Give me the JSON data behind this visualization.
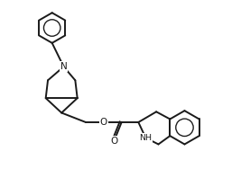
{
  "background_color": "#ffffff",
  "line_color": "#1a1a1a",
  "line_width": 1.4,
  "figsize": [
    2.67,
    1.88
  ],
  "dpi": 100,
  "xlim": [
    0.0,
    10.5
  ],
  "ylim": [
    0.5,
    8.5
  ]
}
